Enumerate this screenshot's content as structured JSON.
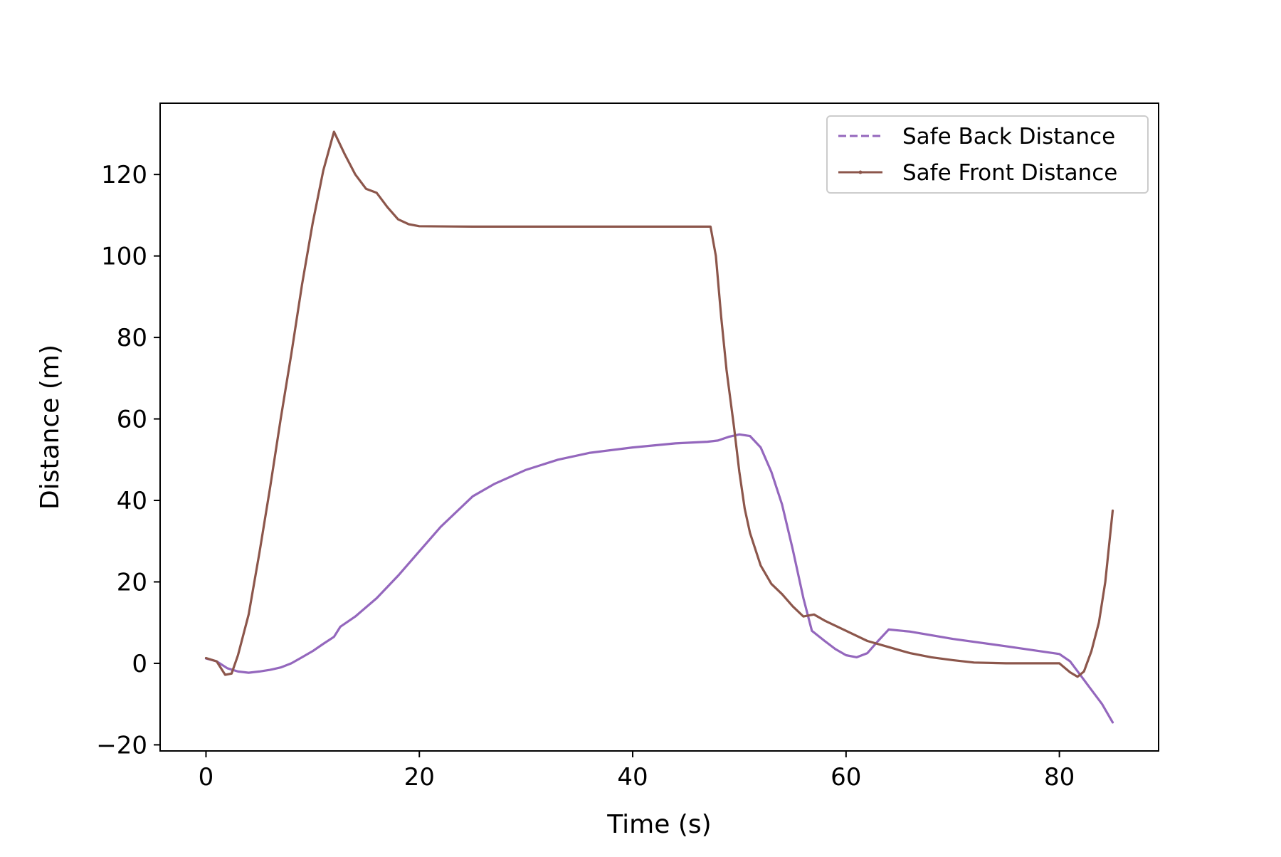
{
  "chart_data": {
    "type": "line",
    "xlabel": "Time (s)",
    "ylabel": "Distance (m)",
    "xlim": [
      -4.3,
      89.3
    ],
    "ylim": [
      -21.5,
      137.5
    ],
    "xticks": [
      0,
      20,
      40,
      60,
      80
    ],
    "xtick_labels": [
      "0",
      "20",
      "40",
      "60",
      "80"
    ],
    "yticks": [
      -20,
      0,
      20,
      40,
      60,
      80,
      100,
      120
    ],
    "ytick_labels": [
      "−20",
      "0",
      "20",
      "40",
      "60",
      "80",
      "100",
      "120"
    ],
    "grid": false,
    "legend_position": "upper right",
    "series": [
      {
        "name": "Safe Back Distance",
        "color": "#9467bd",
        "linestyle": "dashed",
        "points": [
          [
            0,
            1.2
          ],
          [
            1,
            0.5
          ],
          [
            2,
            -1.2
          ],
          [
            3,
            -2.0
          ],
          [
            4,
            -2.3
          ],
          [
            5,
            -2.0
          ],
          [
            6,
            -1.6
          ],
          [
            7,
            -1.0
          ],
          [
            8,
            0.0
          ],
          [
            9,
            1.5
          ],
          [
            10,
            3.0
          ],
          [
            11,
            4.8
          ],
          [
            12,
            6.5
          ],
          [
            12.6,
            9.0
          ],
          [
            14,
            11.5
          ],
          [
            16,
            16.0
          ],
          [
            18,
            21.5
          ],
          [
            20,
            27.5
          ],
          [
            22,
            33.5
          ],
          [
            24,
            38.5
          ],
          [
            25,
            41.0
          ],
          [
            27,
            44.0
          ],
          [
            30,
            47.5
          ],
          [
            33,
            50.0
          ],
          [
            36,
            51.7
          ],
          [
            40,
            53.0
          ],
          [
            44,
            54.0
          ],
          [
            47,
            54.4
          ],
          [
            48,
            54.7
          ],
          [
            49,
            55.6
          ],
          [
            50,
            56.2
          ],
          [
            51,
            55.8
          ],
          [
            52,
            53.0
          ],
          [
            53,
            47.0
          ],
          [
            54,
            39.0
          ],
          [
            55,
            28.0
          ],
          [
            56,
            16.0
          ],
          [
            56.8,
            8.0
          ],
          [
            58,
            5.5
          ],
          [
            59,
            3.5
          ],
          [
            60,
            2.0
          ],
          [
            61,
            1.5
          ],
          [
            62,
            2.5
          ],
          [
            63,
            5.5
          ],
          [
            64,
            8.3
          ],
          [
            66,
            7.8
          ],
          [
            70,
            6.0
          ],
          [
            75,
            4.2
          ],
          [
            80,
            2.3
          ],
          [
            81,
            0.5
          ],
          [
            82,
            -3.0
          ],
          [
            83,
            -6.5
          ],
          [
            84,
            -10.0
          ],
          [
            85,
            -14.5
          ]
        ]
      },
      {
        "name": "Safe Front Distance",
        "color": "#8c564b",
        "linestyle": "solid",
        "points": [
          [
            0,
            1.3
          ],
          [
            1,
            0.5
          ],
          [
            1.8,
            -2.8
          ],
          [
            2.4,
            -2.5
          ],
          [
            3,
            2.0
          ],
          [
            4,
            12.0
          ],
          [
            5,
            27.0
          ],
          [
            6,
            43.0
          ],
          [
            7,
            60.0
          ],
          [
            8,
            76.0
          ],
          [
            9,
            93.0
          ],
          [
            10,
            108.0
          ],
          [
            11,
            121.0
          ],
          [
            12,
            130.5
          ],
          [
            13,
            125.0
          ],
          [
            14,
            120.0
          ],
          [
            15,
            116.5
          ],
          [
            16,
            115.5
          ],
          [
            17,
            112.0
          ],
          [
            18,
            109.0
          ],
          [
            19,
            107.8
          ],
          [
            20,
            107.3
          ],
          [
            25,
            107.2
          ],
          [
            30,
            107.2
          ],
          [
            40,
            107.2
          ],
          [
            47.3,
            107.2
          ],
          [
            47.8,
            100.0
          ],
          [
            48.3,
            85.0
          ],
          [
            48.8,
            72.0
          ],
          [
            49.5,
            58.0
          ],
          [
            50,
            47.0
          ],
          [
            50.5,
            38.0
          ],
          [
            51,
            32.0
          ],
          [
            52,
            24.0
          ],
          [
            53,
            19.5
          ],
          [
            54,
            17.0
          ],
          [
            55,
            14.0
          ],
          [
            56,
            11.5
          ],
          [
            57,
            12.0
          ],
          [
            58,
            10.5
          ],
          [
            60,
            8.0
          ],
          [
            62,
            5.5
          ],
          [
            64,
            4.0
          ],
          [
            66,
            2.5
          ],
          [
            68,
            1.5
          ],
          [
            70,
            0.8
          ],
          [
            72,
            0.2
          ],
          [
            75,
            0.0
          ],
          [
            78,
            0.0
          ],
          [
            80,
            0.0
          ],
          [
            81,
            -2.2
          ],
          [
            81.7,
            -3.3
          ],
          [
            82.3,
            -2.0
          ],
          [
            83,
            3.0
          ],
          [
            83.7,
            10.0
          ],
          [
            84.3,
            20.0
          ],
          [
            85,
            37.5
          ]
        ]
      }
    ]
  }
}
